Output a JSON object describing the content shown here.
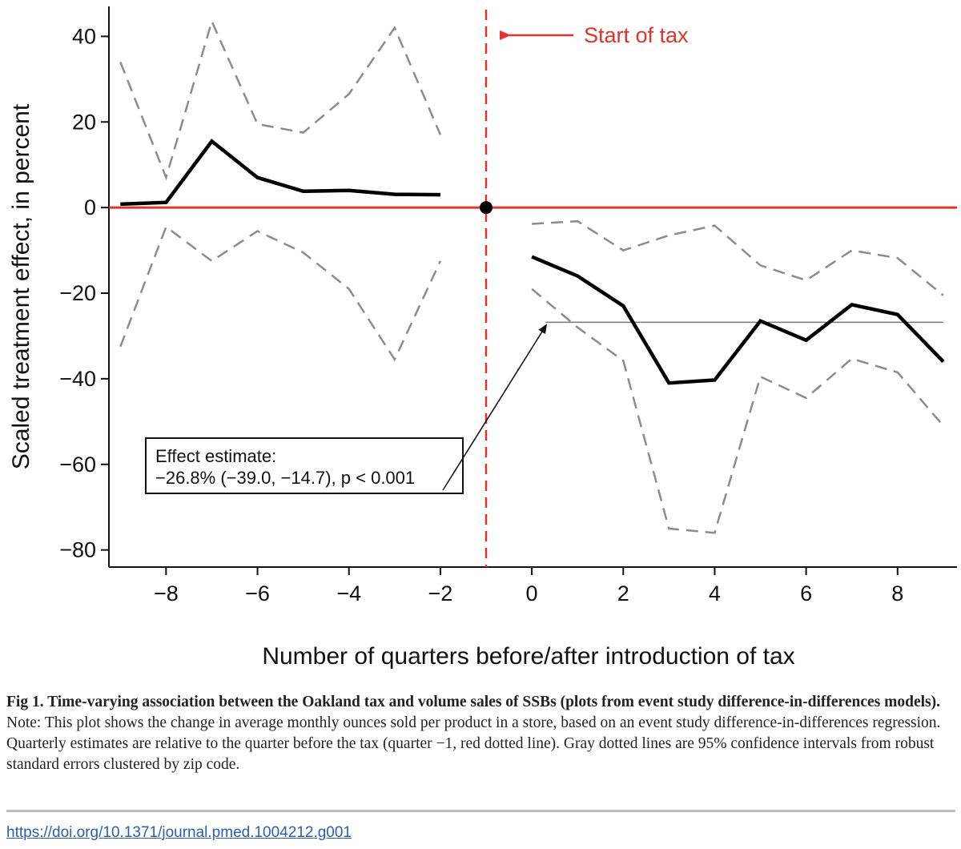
{
  "chart_data": {
    "type": "line",
    "title": "",
    "xlabel": "Number of quarters before/after introduction of tax",
    "ylabel": "Scaled treatment effect, in percent",
    "xlim": [
      -9.25,
      9.3
    ],
    "ylim": [
      -84,
      47
    ],
    "xticks": [
      -8,
      -6,
      -4,
      -2,
      0,
      2,
      4,
      6,
      8
    ],
    "yticks": [
      40,
      20,
      0,
      -20,
      -40,
      -60,
      -80
    ],
    "xtick_labels": [
      "−8",
      "−6",
      "−4",
      "−2",
      "0",
      "2",
      "4",
      "6",
      "8"
    ],
    "ytick_labels": [
      "40",
      "20",
      "0",
      "−20",
      "−40",
      "−60",
      "−80"
    ],
    "series": [
      {
        "name": "estimate_pre",
        "style": "solid-thick-black",
        "x": [
          -9,
          -8,
          -7,
          -6,
          -5,
          -4,
          -3,
          -2
        ],
        "y": [
          0.8,
          1.2,
          15.5,
          7,
          3.8,
          4,
          3.1,
          3
        ]
      },
      {
        "name": "upper_ci_pre",
        "style": "dashed-gray",
        "x": [
          -9,
          -8,
          -7,
          -6,
          -5,
          -4,
          -3,
          -2
        ],
        "y": [
          34,
          7,
          43.5,
          19.5,
          17.5,
          26.5,
          42,
          17
        ]
      },
      {
        "name": "lower_ci_pre",
        "style": "dashed-gray",
        "x": [
          -9,
          -8,
          -7,
          -6,
          -5,
          -4,
          -3,
          -2
        ],
        "y": [
          -32.5,
          -4.5,
          -12.5,
          -5.5,
          -10.5,
          -19,
          -35.5,
          -12.5
        ]
      },
      {
        "name": "estimate_post",
        "style": "solid-thick-black",
        "x": [
          0,
          1,
          2,
          3,
          4,
          5,
          6,
          7,
          8,
          9
        ],
        "y": [
          -11.5,
          -16,
          -23,
          -41,
          -40.3,
          -26.5,
          -31,
          -22.7,
          -25,
          -36
        ]
      },
      {
        "name": "upper_ci_post",
        "style": "dashed-gray",
        "x": [
          0,
          1,
          2,
          3,
          4,
          5,
          6,
          7,
          8,
          9
        ],
        "y": [
          -3.8,
          -3.2,
          -10,
          -6.5,
          -4.2,
          -13.5,
          -17,
          -10,
          -11.8,
          -20.5
        ]
      },
      {
        "name": "lower_ci_post",
        "style": "dashed-gray",
        "x": [
          0,
          1,
          2,
          3,
          4,
          5,
          6,
          7,
          8,
          9
        ],
        "y": [
          -19,
          -28,
          -35.8,
          -75,
          -76,
          -39.5,
          -44.5,
          -35.3,
          -38.5,
          -51
        ]
      }
    ],
    "reference_point": {
      "x": -1,
      "y": 0
    },
    "tax_start_x": -1,
    "pooled_effect": -26.8,
    "pooled_effect_x_range": [
      0.3,
      9
    ],
    "annotations": {
      "tax_label": "Start of tax",
      "box_line1": "Effect estimate:",
      "box_line2": "−26.8%  (−39.0, −14.7), p < 0.001"
    },
    "colors": {
      "estimate": "#000000",
      "ci": "#8c8c8c",
      "reference": "#e0332b",
      "pooled": "#777777"
    }
  },
  "caption": {
    "bold": "Fig 1.  Time-varying association between the Oakland tax and volume sales of SSBs (plots from event study difference-in-differences models).",
    "text": " Note: This plot shows the change in average monthly ounces sold per product in a store, based on an event study difference-in-differences regression. Quarterly estimates are relative to the quarter before the tax (quarter −1, red dotted line). Gray dotted lines are 95% confidence intervals from robust standard errors clustered by zip code."
  },
  "doi": "https://doi.org/10.1371/journal.pmed.1004212.g001"
}
